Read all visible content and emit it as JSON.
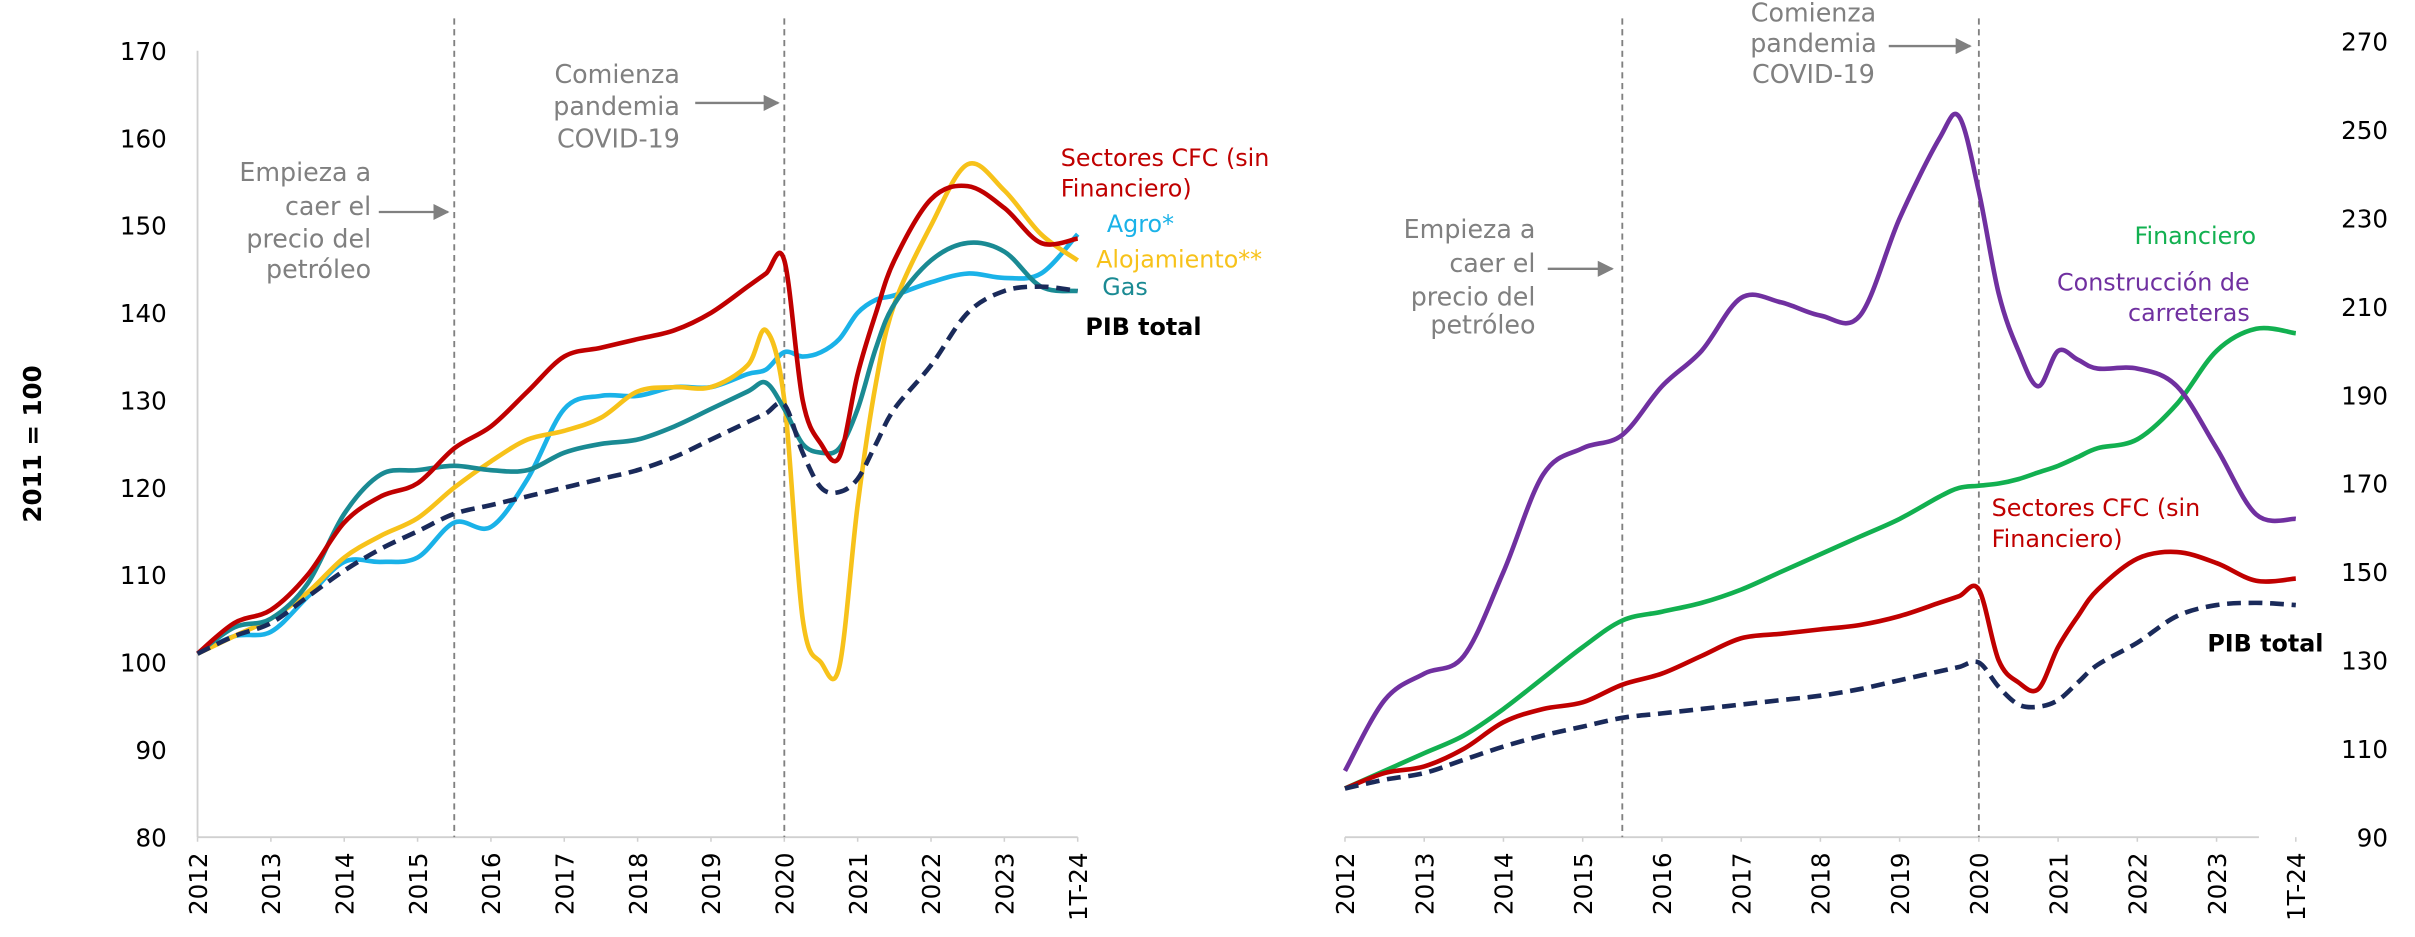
{
  "chart_data": [
    {
      "type": "line",
      "ylabel": "2011 = 100",
      "x": [
        2012,
        2012.5,
        2013,
        2013.5,
        2014,
        2014.5,
        2015,
        2015.5,
        2016,
        2016.5,
        2017,
        2017.5,
        2018,
        2018.5,
        2019,
        2019.5,
        2019.75,
        2020,
        2020.25,
        2020.5,
        2020.75,
        2021,
        2021.25,
        2021.5,
        2022,
        2022.5,
        2023,
        2023.5,
        2024
      ],
      "xlim": [
        2012,
        2024
      ],
      "xticks": [
        2012,
        2013,
        2014,
        2015,
        2016,
        2017,
        2018,
        2019,
        2020,
        2021,
        2022,
        2023,
        {
          "value": 2024,
          "label": "1T-24"
        }
      ],
      "ylim": [
        80,
        170
      ],
      "yticks": [
        80,
        90,
        100,
        110,
        120,
        130,
        140,
        150,
        160,
        170
      ],
      "vlines": [
        2015.5,
        2020
      ],
      "annotations": [
        {
          "text": [
            "Empieza a",
            "caer el",
            "precio del",
            "petróleo"
          ]
        },
        {
          "text": [
            "Comienza",
            "pandemia",
            "COVID-19"
          ]
        }
      ],
      "series": [
        {
          "name": "Agro*",
          "color": "#1ab2e8",
          "values": [
            101,
            103,
            103.5,
            107.5,
            111.5,
            111.5,
            112,
            116,
            115.5,
            121,
            129,
            130.5,
            130.5,
            131.5,
            131.5,
            133,
            133.5,
            135.5,
            135,
            135.5,
            137,
            140,
            141.5,
            142,
            143.5,
            144.5,
            144,
            144.5,
            149
          ]
        },
        {
          "name": "Alojamiento**",
          "color": "#f7c21a",
          "values": [
            101,
            103,
            105,
            108,
            112,
            114.5,
            116.5,
            120,
            123,
            125.5,
            126.5,
            128,
            131,
            131.5,
            131.5,
            134,
            138,
            130,
            105,
            100,
            99.5,
            118,
            132,
            141,
            150,
            157,
            154,
            149,
            146
          ]
        },
        {
          "name": "Gas",
          "color": "#1a8a93",
          "values": [
            101,
            104,
            105,
            109,
            117,
            121.5,
            122,
            122.5,
            122,
            122,
            124,
            125,
            125.5,
            127,
            129,
            131,
            132,
            129,
            125,
            124,
            124.5,
            129,
            136,
            141,
            146,
            148,
            147,
            143,
            142.5
          ]
        },
        {
          "name": "Sectores CFC (sin Financiero)",
          "color": "#c00000",
          "values": [
            101,
            104.5,
            106,
            110,
            116,
            119,
            120.5,
            124.5,
            127,
            131,
            135,
            136,
            137,
            138,
            140,
            143,
            144.5,
            146,
            130,
            125,
            123.5,
            133,
            140,
            146,
            153,
            154.5,
            152,
            148,
            148.5
          ]
        },
        {
          "name": "PIB total",
          "color": "#1a2a5a",
          "dash": true,
          "values": [
            101,
            103,
            104.5,
            107.5,
            110.5,
            113,
            115,
            117,
            118,
            119,
            120,
            121,
            122,
            123.5,
            125.5,
            127.5,
            128.5,
            129.5,
            124,
            120,
            119.5,
            121,
            125,
            129,
            134,
            140,
            142.5,
            143,
            142.5
          ]
        }
      ]
    },
    {
      "type": "line",
      "yaxis_position": "right",
      "x": [
        2012,
        2012.5,
        2013,
        2013.5,
        2014,
        2014.5,
        2015,
        2015.5,
        2016,
        2016.5,
        2017,
        2017.5,
        2018,
        2018.5,
        2019,
        2019.5,
        2019.75,
        2020,
        2020.25,
        2020.5,
        2020.75,
        2021,
        2021.25,
        2021.5,
        2022,
        2022.5,
        2023,
        2023.5,
        2024
      ],
      "xlim": [
        2012,
        2024
      ],
      "xticks": [
        2012,
        2013,
        2014,
        2015,
        2016,
        2017,
        2018,
        2019,
        2020,
        2021,
        2022,
        2023,
        {
          "value": 2024,
          "label": "1T-24"
        }
      ],
      "ylim": [
        90,
        270
      ],
      "yticks": [
        90,
        110,
        130,
        150,
        170,
        190,
        210,
        230,
        250,
        270
      ],
      "vlines": [
        2015.5,
        2020
      ],
      "annotations": [
        {
          "text": [
            "Empieza a",
            "caer el",
            "precio del",
            "petróleo"
          ]
        },
        {
          "text": [
            "Comienza",
            "pandemia",
            "COVID-19"
          ]
        }
      ],
      "series": [
        {
          "name": "Financiero",
          "color": "#12b050",
          "values": [
            101,
            105,
            109,
            113,
            119,
            126,
            133,
            139,
            141,
            143,
            146,
            150,
            154,
            158,
            162,
            167,
            169,
            169.5,
            170,
            171,
            172.5,
            174,
            176,
            178,
            180,
            188,
            200,
            205,
            204
          ]
        },
        {
          "name": "Construcción de carreteras",
          "color": "#7030a0",
          "values": [
            105,
            121,
            127,
            131,
            150,
            172,
            178,
            181,
            192,
            200,
            212,
            211,
            208,
            208,
            230,
            248,
            253,
            236,
            213,
            200,
            192,
            200,
            198,
            196,
            196,
            192,
            178,
            163,
            162
          ]
        },
        {
          "name": "Sectores CFC (sin Financiero)",
          "color": "#c00000",
          "values": [
            101,
            104.5,
            106,
            110,
            116,
            119,
            120.5,
            124.5,
            127,
            131,
            135,
            136,
            137,
            138,
            140,
            143,
            144.5,
            146,
            130,
            125,
            123.5,
            133,
            140,
            146,
            153,
            154.5,
            152,
            148,
            148.5
          ]
        },
        {
          "name": "PIB total",
          "color": "#1a2a5a",
          "dash": true,
          "values": [
            101,
            103,
            104.5,
            107.5,
            110.5,
            113,
            115,
            117,
            118,
            119,
            120,
            121,
            122,
            123.5,
            125.5,
            127.5,
            128.5,
            129.5,
            124,
            120,
            119.5,
            121,
            125,
            129,
            134,
            140,
            142.5,
            143,
            142.5
          ]
        }
      ]
    }
  ]
}
